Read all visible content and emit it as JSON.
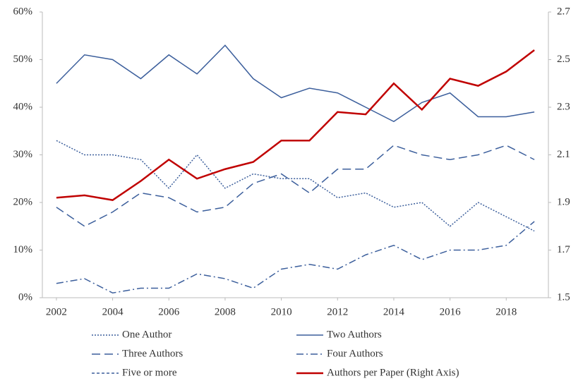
{
  "chart_data": {
    "type": "line",
    "x": [
      2002,
      2003,
      2004,
      2005,
      2006,
      2007,
      2008,
      2009,
      2010,
      2011,
      2012,
      2013,
      2014,
      2015,
      2016,
      2017,
      2018,
      2019
    ],
    "xlim": [
      2001.5,
      2019.5
    ],
    "xticks": [
      2002,
      2004,
      2006,
      2008,
      2010,
      2012,
      2014,
      2016,
      2018
    ],
    "ylim": [
      0,
      60
    ],
    "yticks": [
      {
        "value": 0,
        "label": "0%"
      },
      {
        "value": 10,
        "label": "10%"
      },
      {
        "value": 20,
        "label": "20%"
      },
      {
        "value": 30,
        "label": "30%"
      },
      {
        "value": 40,
        "label": "40%"
      },
      {
        "value": 50,
        "label": "50%"
      },
      {
        "value": 60,
        "label": "60%"
      }
    ],
    "y2lim": [
      1.5,
      2.7
    ],
    "y2ticks": [
      1.5,
      1.7,
      1.9,
      2.1,
      2.3,
      2.5,
      2.7
    ],
    "series": [
      {
        "name": "One Author",
        "color": "#3c5f9c",
        "dash": "2,2",
        "values": [
          33,
          30,
          30,
          29,
          23,
          30,
          23,
          26,
          25,
          25,
          21,
          22,
          19,
          20,
          15,
          20,
          17,
          14
        ]
      },
      {
        "name": "Two Authors",
        "color": "#3c5f9c",
        "dash": "none",
        "values": [
          45,
          51,
          50,
          46,
          51,
          47,
          53,
          46,
          42,
          44,
          43,
          40,
          37,
          41,
          43,
          38,
          38,
          39
        ]
      },
      {
        "name": "Three Authors",
        "color": "#3c5f9c",
        "dash": "12,6",
        "values": [
          19,
          15,
          18,
          22,
          21,
          18,
          19,
          24,
          26,
          22,
          27,
          27,
          32,
          30,
          29,
          30,
          32,
          29
        ]
      },
      {
        "name": "Four Authors",
        "color": "#3c5f9c",
        "dash": "10,4,2,4",
        "values": [
          3,
          4,
          1,
          2,
          2,
          5,
          4,
          2,
          6,
          7,
          6,
          9,
          11,
          8,
          10,
          10,
          11,
          16
        ]
      },
      {
        "name": "Five or more",
        "color": "#3c5f9c",
        "dash": "4,3",
        "values": [
          null,
          null,
          null,
          null,
          null,
          null,
          null,
          null,
          null,
          null,
          null,
          null,
          null,
          null,
          null,
          null,
          null,
          null
        ]
      },
      {
        "name": "Authors per Paper (Right Axis)",
        "color": "#c00000",
        "dash": "none",
        "width": 2.5,
        "axis": "y2",
        "values": [
          1.92,
          1.93,
          1.91,
          1.99,
          2.08,
          2.0,
          2.04,
          2.07,
          2.16,
          2.16,
          2.28,
          2.27,
          2.4,
          2.29,
          2.42,
          2.39,
          2.45,
          2.54
        ]
      }
    ]
  }
}
